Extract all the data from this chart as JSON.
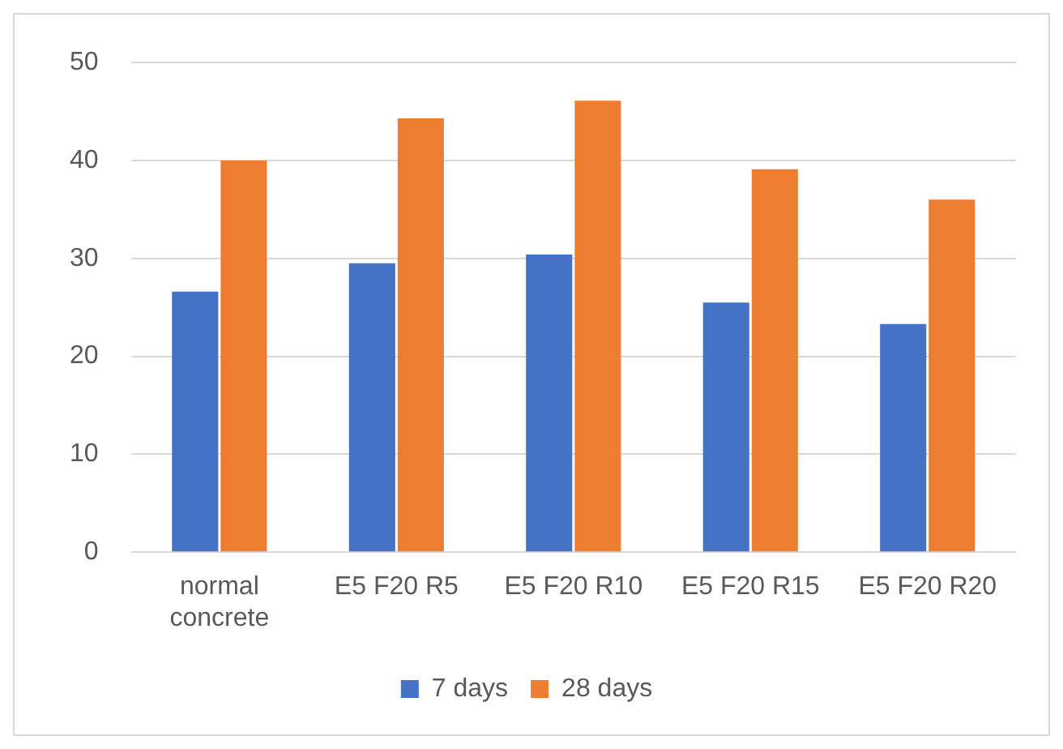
{
  "chart_data": {
    "type": "bar",
    "categories": [
      "normal concrete",
      "E5 F20 R5",
      "E5 F20 R10",
      "E5 F20 R15",
      "E5 F20 R20"
    ],
    "series": [
      {
        "name": "7 days",
        "color": "#4472c4",
        "values": [
          26.6,
          29.5,
          30.4,
          25.5,
          23.3
        ]
      },
      {
        "name": "28 days",
        "color": "#ed7d31",
        "values": [
          40.0,
          44.3,
          46.1,
          39.1,
          36.0
        ]
      }
    ],
    "ylim": [
      0,
      50
    ],
    "yticks": [
      0,
      10,
      20,
      30,
      40,
      50
    ],
    "grid": "y",
    "legend": "bottom"
  }
}
